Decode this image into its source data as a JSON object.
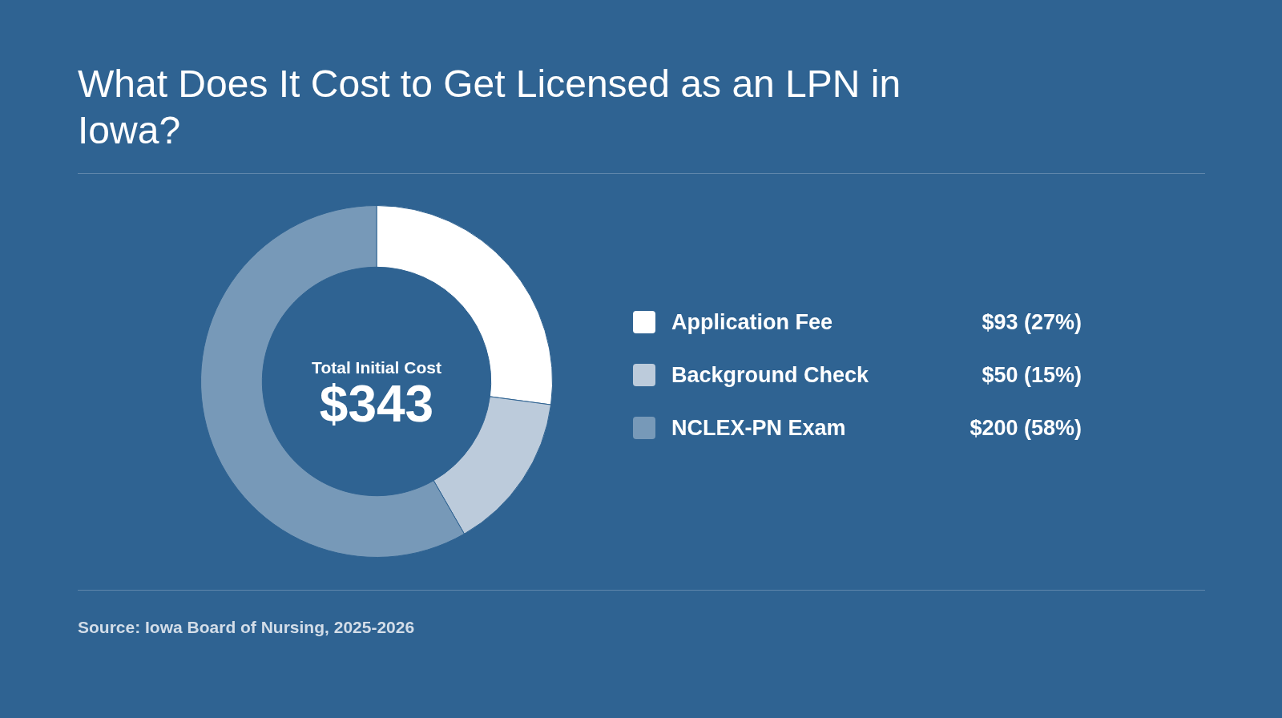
{
  "chart_data": {
    "type": "donut",
    "title": "What Does It Cost to Get Licensed as an LPN in Iowa?",
    "categories": [
      "Application Fee",
      "Background Check",
      "NCLEX-PN Exam"
    ],
    "values": [
      93,
      50,
      200
    ],
    "colors": [
      "#ffffff",
      "#bccbdb",
      "#7799b8"
    ],
    "value_labels": [
      "$93 (27%)",
      "$50 (15%)",
      "$200 (58%)"
    ],
    "legend": "right",
    "annotations": [
      "Total Initial Cost",
      "$343",
      "Source: Iowa Board of Nursing, 2025-2026"
    ]
  }
}
